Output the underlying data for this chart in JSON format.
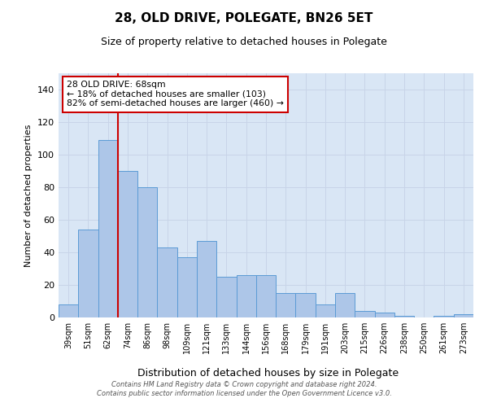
{
  "title": "28, OLD DRIVE, POLEGATE, BN26 5ET",
  "subtitle": "Size of property relative to detached houses in Polegate",
  "xlabel": "Distribution of detached houses by size in Polegate",
  "ylabel": "Number of detached properties",
  "categories": [
    "39sqm",
    "51sqm",
    "62sqm",
    "74sqm",
    "86sqm",
    "98sqm",
    "109sqm",
    "121sqm",
    "133sqm",
    "144sqm",
    "156sqm",
    "168sqm",
    "179sqm",
    "191sqm",
    "203sqm",
    "215sqm",
    "226sqm",
    "238sqm",
    "250sqm",
    "261sqm",
    "273sqm"
  ],
  "values": [
    8,
    54,
    109,
    90,
    80,
    43,
    37,
    47,
    25,
    26,
    26,
    15,
    15,
    8,
    15,
    4,
    3,
    1,
    0,
    1,
    2
  ],
  "bar_color": "#adc6e8",
  "bar_edge_color": "#5b9bd5",
  "red_line_index": 2,
  "red_line_color": "#cc0000",
  "annotation_text": "28 OLD DRIVE: 68sqm\n← 18% of detached houses are smaller (103)\n82% of semi-detached houses are larger (460) →",
  "annotation_box_color": "white",
  "annotation_box_edge": "#cc0000",
  "ylim": [
    0,
    150
  ],
  "yticks": [
    0,
    20,
    40,
    60,
    80,
    100,
    120,
    140
  ],
  "grid_color": "#c8d4e8",
  "background_color": "#d9e6f5",
  "footer_line1": "Contains HM Land Registry data © Crown copyright and database right 2024.",
  "footer_line2": "Contains public sector information licensed under the Open Government Licence v3.0."
}
